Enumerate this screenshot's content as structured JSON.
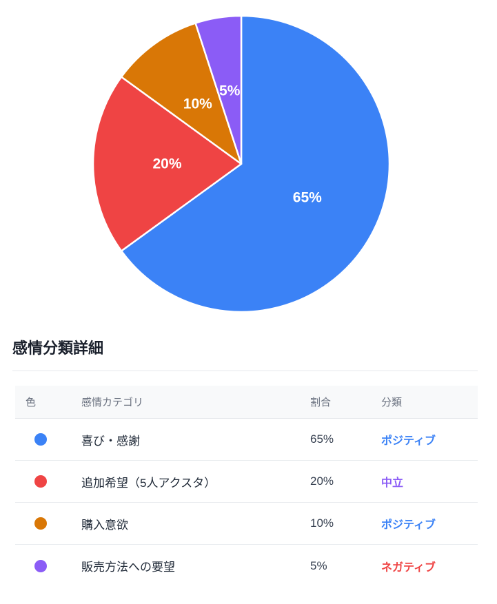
{
  "chart_data": {
    "type": "pie",
    "title": "",
    "start_angle": "12-oclock",
    "direction": "clockwise",
    "label_style": "percent-inside-white-bold",
    "label_radius_factor": 0.5,
    "slices": [
      {
        "label": "喜び・感謝",
        "value": 65,
        "display": "65%",
        "color": "#3B82F6"
      },
      {
        "label": "追加希望（5人アクスタ）",
        "value": 20,
        "display": "20%",
        "color": "#EF4444"
      },
      {
        "label": "購入意欲",
        "value": 10,
        "display": "10%",
        "color": "#D97706"
      },
      {
        "label": "販売方法への要望",
        "value": 5,
        "display": "5%",
        "color": "#8B5CF6"
      }
    ]
  },
  "section": {
    "title": "感情分類詳細"
  },
  "table": {
    "headers": [
      "色",
      "感情カテゴリ",
      "割合",
      "分類"
    ],
    "rows": [
      {
        "color": "#3B82F6",
        "category": "喜び・感謝",
        "share": "65%",
        "classification": "ポジティブ",
        "classification_color": "#3B82F6"
      },
      {
        "color": "#EF4444",
        "category": "追加希望（5人アクスタ）",
        "share": "20%",
        "classification": "中立",
        "classification_color": "#8B5CF6"
      },
      {
        "color": "#D97706",
        "category": "購入意欲",
        "share": "10%",
        "classification": "ポジティブ",
        "classification_color": "#3B82F6"
      },
      {
        "color": "#8B5CF6",
        "category": "販売方法への要望",
        "share": "5%",
        "classification": "ネガティブ",
        "classification_color": "#EF4444"
      }
    ]
  },
  "colors": {
    "positive": "#3B82F6",
    "neutral": "#8B5CF6",
    "negative": "#EF4444",
    "header_bg": "#f8f9fa",
    "divider": "#e5e7eb"
  }
}
